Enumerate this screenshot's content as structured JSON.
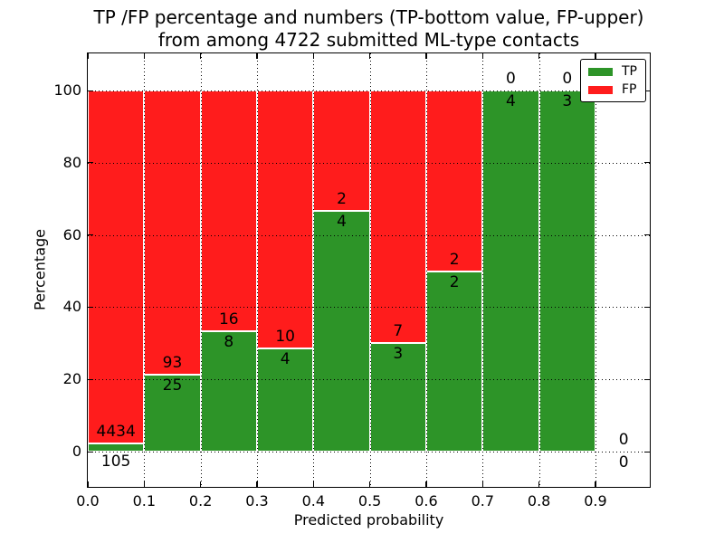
{
  "title": {
    "line1": "TP /FP percentage and numbers (TP-bottom value, FP-upper)",
    "line2": "from among 4722 submitted ML-type contacts"
  },
  "chart_data": {
    "type": "bar",
    "stacked": true,
    "normalized_to_percent": true,
    "title": "TP /FP percentage and numbers (TP-bottom value, FP-upper) from among 4722 submitted ML-type contacts",
    "xlabel": "Predicted probability",
    "ylabel": "Percentage",
    "total_contacts": 4722,
    "xlim": [
      0.0,
      1.0
    ],
    "ylim": [
      -10,
      110
    ],
    "grid": true,
    "xticks": [
      "0.0",
      "0.1",
      "0.2",
      "0.3",
      "0.4",
      "0.5",
      "0.6",
      "0.7",
      "0.8",
      "0.9"
    ],
    "yticks": [
      "0",
      "20",
      "40",
      "60",
      "80",
      "100"
    ],
    "ytick_values": [
      0,
      20,
      40,
      60,
      80,
      100
    ],
    "bin_width": 0.1,
    "bin_starts": [
      0.0,
      0.1,
      0.2,
      0.3,
      0.4,
      0.5,
      0.6,
      0.7,
      0.8,
      0.9
    ],
    "series": [
      {
        "name": "TP",
        "color": "#2d9428",
        "values": [
          105,
          25,
          8,
          4,
          4,
          3,
          2,
          4,
          3,
          0
        ]
      },
      {
        "name": "FP",
        "color": "#ff1c1c",
        "values": [
          4434,
          93,
          16,
          10,
          2,
          7,
          2,
          0,
          0,
          0
        ]
      }
    ],
    "tp_percent_by_bin": [
      2.31,
      21.19,
      33.33,
      28.57,
      66.67,
      30.0,
      50.0,
      100.0,
      100.0,
      null
    ],
    "legend": {
      "position": "upper right",
      "entries": [
        {
          "label": "TP",
          "color": "#2d9428"
        },
        {
          "label": "FP",
          "color": "#ff1c1c"
        }
      ]
    }
  }
}
